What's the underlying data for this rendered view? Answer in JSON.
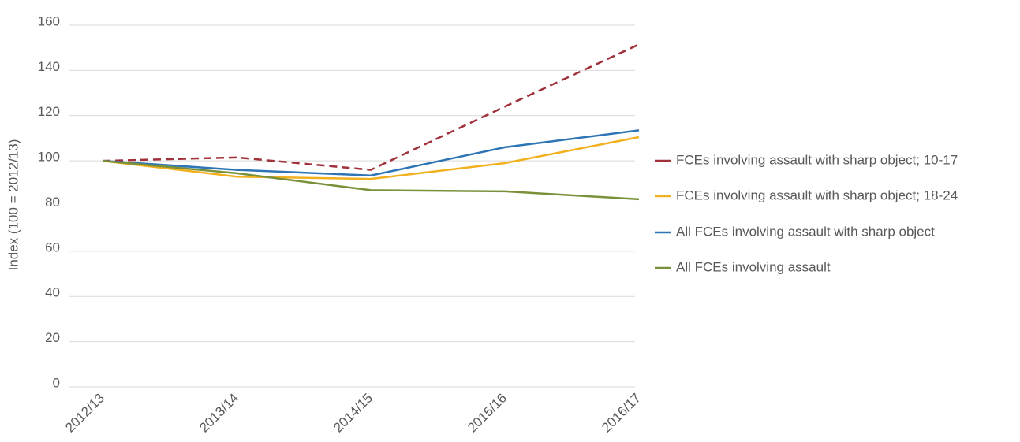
{
  "chart_data": {
    "type": "line",
    "y_label": "Index (100 = 2012/13)",
    "categories": [
      "2012/13",
      "2013/14",
      "2014/15",
      "2015/16",
      "2016/17"
    ],
    "series": [
      {
        "name": "FCEs involving assault with sharp object; 10-17",
        "color": "#a0313a",
        "dashed": true,
        "values": [
          100,
          101.5,
          96,
          124,
          151.5
        ]
      },
      {
        "name": "FCEs involving assault with sharp object; 18-24",
        "color": "#f2b01e",
        "values": [
          100,
          93,
          92,
          99,
          110.5
        ]
      },
      {
        "name": "All FCEs involving assault with sharp object",
        "color": "#2e75b6",
        "values": [
          100,
          96,
          93.5,
          106,
          113.5
        ]
      },
      {
        "name": "All FCEs involving assault",
        "color": "#7a913a",
        "values": [
          100,
          94.5,
          87,
          86.5,
          83
        ]
      }
    ],
    "ylim": [
      0,
      160
    ],
    "yticks": [
      0,
      20,
      40,
      60,
      80,
      100,
      120,
      140,
      160
    ],
    "grid": true,
    "legend": "right"
  }
}
